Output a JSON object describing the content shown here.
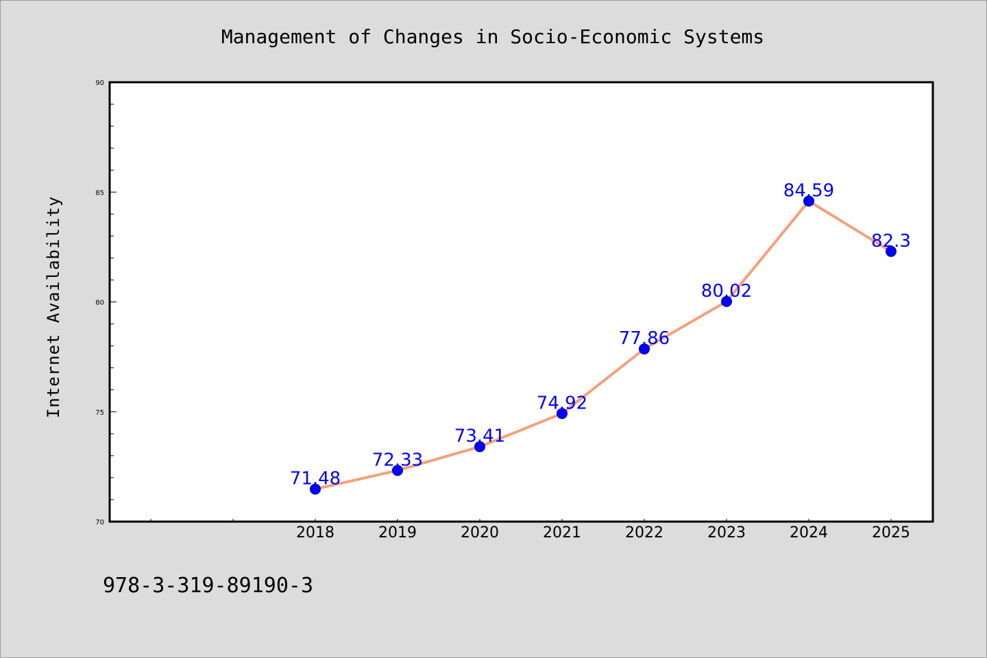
{
  "chart_data": {
    "type": "line",
    "title": "Management of Changes in Socio-Economic Systems",
    "ylabel": "Internet Availability",
    "xlabel": "",
    "x": [
      "2018",
      "2019",
      "2020",
      "2021",
      "2022",
      "2023",
      "2024",
      "2025"
    ],
    "series": [
      {
        "values": [
          71.48,
          72.33,
          73.41,
          74.92,
          77.86,
          80.02,
          84.59,
          82.3
        ]
      }
    ],
    "data_labels": [
      "71.48",
      "72.33",
      "73.41",
      "74.92",
      "77.86",
      "80.02",
      "84.59",
      "82.3"
    ],
    "ylim": [
      70,
      90
    ],
    "yticks": [
      "70",
      "75",
      "80",
      "85",
      "90"
    ],
    "grid": false,
    "legend": "none",
    "colors": {
      "line": "#f4a07a",
      "marker": "#0000ff",
      "label": "#0000ff",
      "background": "#dcdcdc",
      "plot_bg": "#ffffff"
    }
  },
  "footnote": "978-3-319-89190-3"
}
